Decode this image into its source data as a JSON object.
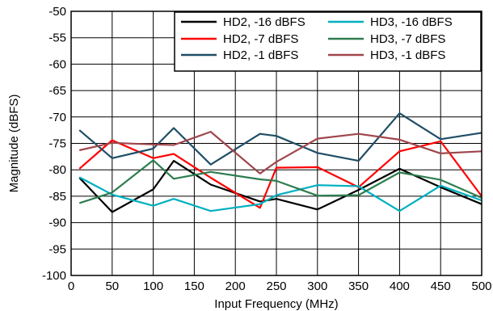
{
  "chart_data": {
    "type": "line",
    "xlabel": "Input Frequency (MHz)",
    "ylabel": "Magnitude (dBFS)",
    "xlim": [
      0,
      500
    ],
    "ylim": [
      -100,
      -50
    ],
    "xticks": [
      0,
      50,
      100,
      150,
      200,
      250,
      300,
      350,
      400,
      450,
      500
    ],
    "yticks": [
      -100,
      -95,
      -90,
      -85,
      -80,
      -75,
      -70,
      -65,
      -60,
      -55,
      -50
    ],
    "grid": true,
    "legend_position": "top-right",
    "x": [
      10,
      50,
      100,
      125,
      170,
      230,
      250,
      300,
      350,
      400,
      450,
      500
    ],
    "series": [
      {
        "name": "HD2, -16 dBFS",
        "color": "#000000",
        "values": [
          -81.5,
          -88,
          -83.7,
          -78.3,
          -82.8,
          -86,
          -85.5,
          -87.5,
          -83.8,
          -79.8,
          -83.3,
          -86.5
        ]
      },
      {
        "name": "HD2, -7 dBFS",
        "color": "#ff0000",
        "values": [
          -79.8,
          -74.4,
          -77.8,
          -77,
          -81.5,
          -87.2,
          -79.6,
          -79.5,
          -83.3,
          -76.5,
          -74.6,
          -85
        ]
      },
      {
        "name": "HD2, -1 dBFS",
        "color": "#1f4e66",
        "values": [
          -72.5,
          -77.8,
          -76,
          -72.1,
          -79,
          -73.2,
          -73.6,
          -76.8,
          -78.3,
          -69.3,
          -74.2,
          -73
        ]
      },
      {
        "name": "HD3, -16 dBFS",
        "color": "#00b0c0",
        "values": [
          -81.4,
          -84.7,
          -86.8,
          -85.5,
          -87.8,
          -86.5,
          -84.8,
          -82.9,
          -83.1,
          -87.8,
          -83,
          -85.8
        ]
      },
      {
        "name": "HD3, -7 dBFS",
        "color": "#2e7d4f",
        "values": [
          -86.3,
          -84.3,
          -78.2,
          -81.7,
          -80.4,
          -81.8,
          -82.1,
          -84.9,
          -84.8,
          -80.5,
          -81.9,
          -85.3
        ]
      },
      {
        "name": "HD3, -1 dBFS",
        "color": "#a0464c",
        "values": [
          -76.3,
          -74.9,
          -75.2,
          -75.3,
          -72.8,
          -80.7,
          -78.5,
          -74.1,
          -73.2,
          -74.3,
          -76.9,
          -76.5
        ]
      }
    ]
  }
}
